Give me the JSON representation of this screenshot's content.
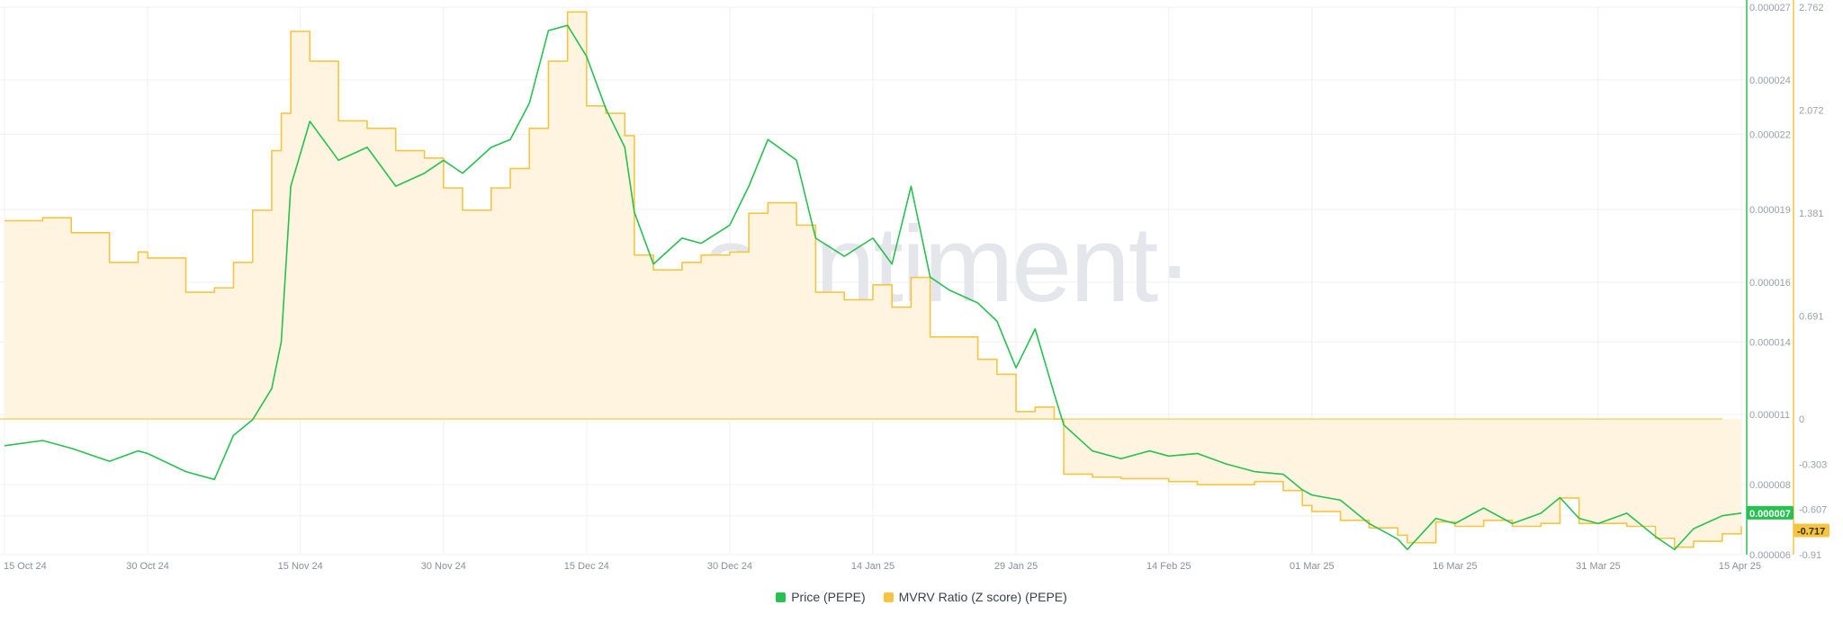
{
  "colors": {
    "price": "#26c151",
    "mvrv": "#f5c542",
    "mvrv_fill": "#fff4e0",
    "grid": "#eef0f3",
    "price_badge_text": "#ffffff",
    "mvrv_badge_text": "#3a2d00"
  },
  "watermark": "·santiment·",
  "legend": {
    "price": "Price (PEPE)",
    "mvrv": "MVRV Ratio (Z score) (PEPE)"
  },
  "badges": {
    "price": "0.000007",
    "mvrv": "-0.717"
  },
  "chart_data": {
    "type": "line",
    "x_ticks": [
      "15 Oct 24",
      "30 Oct 24",
      "15 Nov 24",
      "30 Nov 24",
      "15 Dec 24",
      "30 Dec 24",
      "14 Jan 25",
      "29 Jan 25",
      "14 Feb 25",
      "01 Mar 25",
      "16 Mar 25",
      "31 Mar 25",
      "15 Apr 25"
    ],
    "price_axis": {
      "ticks": [
        "0.000027",
        "0.000024",
        "0.000022",
        "0.000019",
        "0.000016",
        "0.000014",
        "0.000011",
        "0.000008",
        "0.000007",
        "0.000006"
      ],
      "tick_values": [
        2.69e-05,
        2.41e-05,
        2.2e-05,
        1.91e-05,
        1.63e-05,
        1.4e-05,
        1.12e-05,
        8.5e-06,
        7.3e-06,
        5.8e-06
      ],
      "min": 5.8e-06,
      "max": 2.69e-05
    },
    "mvrv_axis": {
      "ticks": [
        "2.762",
        "2.072",
        "1.381",
        "0.691",
        "0",
        "-0.303",
        "-0.607",
        "-0.91"
      ],
      "tick_values": [
        2.762,
        2.072,
        1.381,
        0.691,
        0,
        -0.303,
        -0.607,
        -0.91
      ],
      "min": -0.91,
      "max": 2.762
    },
    "series": [
      {
        "name": "Price (PEPE)",
        "axis": "left",
        "x": [
          "15 Oct 24",
          "19 Oct 24",
          "22 Oct 24",
          "26 Oct 24",
          "29 Oct 24",
          "30 Oct 24",
          "03 Nov 24",
          "06 Nov 24",
          "08 Nov 24",
          "10 Nov 24",
          "12 Nov 24",
          "13 Nov 24",
          "14 Nov 24",
          "16 Nov 24",
          "19 Nov 24",
          "22 Nov 24",
          "25 Nov 24",
          "28 Nov 24",
          "30 Nov 24",
          "02 Dec 24",
          "05 Dec 24",
          "07 Dec 24",
          "09 Dec 24",
          "11 Dec 24",
          "13 Dec 24",
          "15 Dec 24",
          "17 Dec 24",
          "19 Dec 24",
          "20 Dec 24",
          "22 Dec 24",
          "25 Dec 24",
          "27 Dec 24",
          "30 Dec 24",
          "01 Jan 25",
          "03 Jan 25",
          "06 Jan 25",
          "08 Jan 25",
          "11 Jan 25",
          "14 Jan 25",
          "16 Jan 25",
          "18 Jan 25",
          "20 Jan 25",
          "22 Jan 25",
          "25 Jan 25",
          "27 Jan 25",
          "29 Jan 25",
          "31 Jan 25",
          "02 Feb 25",
          "03 Feb 25",
          "06 Feb 25",
          "09 Feb 25",
          "12 Feb 25",
          "14 Feb 25",
          "17 Feb 25",
          "20 Feb 25",
          "23 Feb 25",
          "26 Feb 25",
          "28 Feb 25",
          "01 Mar 25",
          "04 Mar 25",
          "07 Mar 25",
          "10 Mar 25",
          "11 Mar 25",
          "14 Mar 25",
          "16 Mar 25",
          "19 Mar 25",
          "22 Mar 25",
          "25 Mar 25",
          "27 Mar 25",
          "29 Mar 25",
          "31 Mar 25",
          "03 Apr 25",
          "06 Apr 25",
          "08 Apr 25",
          "10 Apr 25",
          "13 Apr 25",
          "15 Apr 25"
        ],
        "values": [
          1e-05,
          1.02e-05,
          9.9e-06,
          9.4e-06,
          9.8e-06,
          9.7e-06,
          9e-06,
          8.7e-06,
          1.04e-05,
          1.1e-05,
          1.22e-05,
          1.4e-05,
          2e-05,
          2.25e-05,
          2.1e-05,
          2.15e-05,
          2e-05,
          2.05e-05,
          2.1e-05,
          2.05e-05,
          2.15e-05,
          2.18e-05,
          2.32e-05,
          2.6e-05,
          2.62e-05,
          2.5e-05,
          2.3e-05,
          2.15e-05,
          1.9e-05,
          1.7e-05,
          1.8e-05,
          1.78e-05,
          1.85e-05,
          2e-05,
          2.18e-05,
          2.1e-05,
          1.8e-05,
          1.73e-05,
          1.8e-05,
          1.7e-05,
          2e-05,
          1.65e-05,
          1.6e-05,
          1.55e-05,
          1.48e-05,
          1.3e-05,
          1.45e-05,
          1.2e-05,
          1.08e-05,
          9.8e-06,
          9.5e-06,
          9.8e-06,
          9.6e-06,
          9.7e-06,
          9.3e-06,
          9e-06,
          8.9e-06,
          8.3e-06,
          8.1e-06,
          7.9e-06,
          7e-06,
          6.4e-06,
          6e-06,
          7.2e-06,
          7e-06,
          7.6e-06,
          7e-06,
          7.4e-06,
          8e-06,
          7.2e-06,
          7e-06,
          7.4e-06,
          6.5e-06,
          6e-06,
          6.8e-06,
          7.3e-06,
          7.4e-06
        ]
      },
      {
        "name": "MVRV Ratio (Z score) (PEPE)",
        "axis": "right",
        "x": [
          "15 Oct 24",
          "19 Oct 24",
          "22 Oct 24",
          "26 Oct 24",
          "29 Oct 24",
          "30 Oct 24",
          "03 Nov 24",
          "06 Nov 24",
          "08 Nov 24",
          "10 Nov 24",
          "12 Nov 24",
          "13 Nov 24",
          "14 Nov 24",
          "16 Nov 24",
          "19 Nov 24",
          "22 Nov 24",
          "25 Nov 24",
          "28 Nov 24",
          "30 Nov 24",
          "02 Dec 24",
          "05 Dec 24",
          "07 Dec 24",
          "09 Dec 24",
          "11 Dec 24",
          "13 Dec 24",
          "15 Dec 24",
          "17 Dec 24",
          "19 Dec 24",
          "20 Dec 24",
          "22 Dec 24",
          "25 Dec 24",
          "27 Dec 24",
          "30 Dec 24",
          "01 Jan 25",
          "03 Jan 25",
          "06 Jan 25",
          "08 Jan 25",
          "11 Jan 25",
          "14 Jan 25",
          "16 Jan 25",
          "18 Jan 25",
          "20 Jan 25",
          "22 Jan 25",
          "25 Jan 25",
          "27 Jan 25",
          "29 Jan 25",
          "31 Jan 25",
          "02 Feb 25",
          "03 Feb 25",
          "06 Feb 25",
          "09 Feb 25",
          "12 Feb 25",
          "14 Feb 25",
          "17 Feb 25",
          "20 Feb 25",
          "23 Feb 25",
          "26 Feb 25",
          "28 Feb 25",
          "01 Mar 25",
          "04 Mar 25",
          "07 Mar 25",
          "10 Mar 25",
          "11 Mar 25",
          "14 Mar 25",
          "16 Mar 25",
          "19 Mar 25",
          "22 Mar 25",
          "25 Mar 25",
          "27 Mar 25",
          "29 Mar 25",
          "31 Mar 25",
          "03 Apr 25",
          "06 Apr 25",
          "08 Apr 25",
          "10 Apr 25",
          "13 Apr 25",
          "15 Apr 25"
        ],
        "values": [
          1.33,
          1.35,
          1.25,
          1.05,
          1.12,
          1.08,
          0.85,
          0.88,
          1.05,
          1.4,
          1.8,
          2.05,
          2.6,
          2.4,
          2.0,
          1.95,
          1.8,
          1.75,
          1.55,
          1.4,
          1.55,
          1.68,
          1.95,
          2.4,
          2.73,
          2.1,
          2.05,
          1.9,
          1.1,
          1.0,
          1.05,
          1.1,
          1.12,
          1.38,
          1.45,
          1.3,
          0.85,
          0.8,
          0.9,
          0.75,
          0.95,
          0.55,
          0.55,
          0.4,
          0.3,
          0.05,
          0.08,
          0.0,
          -0.37,
          -0.39,
          -0.4,
          -0.4,
          -0.42,
          -0.44,
          -0.44,
          -0.42,
          -0.48,
          -0.58,
          -0.62,
          -0.68,
          -0.73,
          -0.78,
          -0.83,
          -0.69,
          -0.72,
          -0.68,
          -0.72,
          -0.7,
          -0.53,
          -0.7,
          -0.7,
          -0.72,
          -0.8,
          -0.86,
          -0.82,
          -0.77,
          -0.72
        ]
      }
    ],
    "legend": "bottom-center",
    "grid": true
  }
}
